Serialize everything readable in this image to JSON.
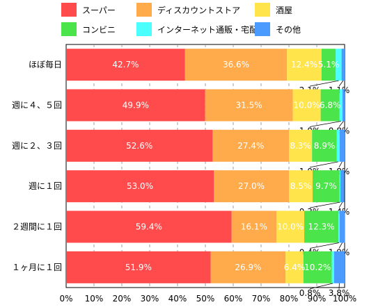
{
  "chart_data": {
    "type": "bar",
    "orientation": "horizontal",
    "stacked": true,
    "percent_stacked": true,
    "categories": [
      "ほぼ毎日",
      "週に４、５回",
      "週に２、３回",
      "週に１回",
      "２週間に１回",
      "１ヶ月に１回"
    ],
    "series": [
      {
        "name": "スーパー",
        "color": "#ff4b4b",
        "values": [
          42.7,
          49.9,
          52.6,
          53.0,
          59.4,
          51.9
        ]
      },
      {
        "name": "ディスカウントストア",
        "color": "#ffaa4b",
        "values": [
          36.6,
          31.5,
          27.4,
          27.0,
          16.1,
          26.9
        ]
      },
      {
        "name": "酒屋",
        "color": "#ffe44b",
        "values": [
          12.4,
          10.0,
          8.3,
          8.5,
          10.0,
          6.4
        ]
      },
      {
        "name": "コンビニ",
        "color": "#4be44b",
        "values": [
          5.1,
          6.8,
          8.9,
          9.7,
          12.3,
          10.2
        ]
      },
      {
        "name": "インターネット通販・宅配",
        "color": "#4bffff",
        "values": [
          2.1,
          1.0,
          1.0,
          0.3,
          0.4,
          0.8
        ]
      },
      {
        "name": "その他",
        "color": "#4b9bff",
        "values": [
          1.1,
          0.8,
          1.8,
          1.4,
          1.9,
          3.8
        ]
      }
    ],
    "value_labels": [
      [
        "42.7%",
        "36.6%",
        "12.4%",
        "5.1%",
        "2.1%",
        "1.1%"
      ],
      [
        "49.9%",
        "31.5%",
        "10.0%",
        "6.8%",
        "1.0%",
        "0.8%"
      ],
      [
        "52.6%",
        "27.4%",
        "8.3%",
        "8.9%",
        "1.0%",
        "1.8%"
      ],
      [
        "53.0%",
        "27.0%",
        "8.5%",
        "9.7%",
        "0.3%",
        "1.4%"
      ],
      [
        "59.4%",
        "16.1%",
        "10.0%",
        "12.3%",
        "0.4%",
        "1.9%"
      ],
      [
        "51.9%",
        "26.9%",
        "6.4%",
        "10.2%",
        "0.8%",
        "3.8%"
      ]
    ],
    "xlim": [
      0,
      100
    ],
    "x_ticks": [
      "0%",
      "10%",
      "20%",
      "30%",
      "40%",
      "50%",
      "60%",
      "70%",
      "80%",
      "90%",
      "100%"
    ],
    "grid": "vertical dashed",
    "legend_position": "top"
  }
}
